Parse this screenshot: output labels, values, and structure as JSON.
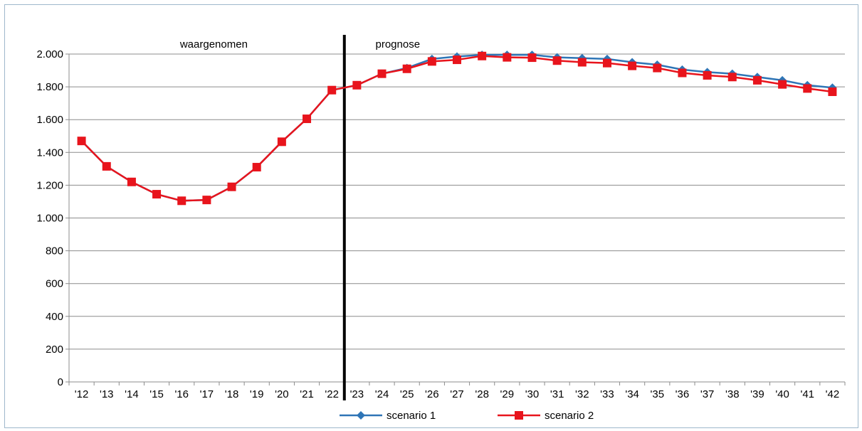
{
  "chart_data": {
    "type": "line",
    "title": "",
    "xlabel": "",
    "ylabel": "",
    "categories": [
      "'12",
      "'13",
      "'14",
      "'15",
      "'16",
      "'17",
      "'18",
      "'19",
      "'20",
      "'21",
      "'22",
      "'23",
      "'24",
      "'25",
      "'26",
      "'27",
      "'28",
      "'29",
      "'30",
      "'31",
      "'32",
      "'33",
      "'34",
      "'35",
      "'36",
      "'37",
      "'38",
      "'39",
      "'40",
      "'41",
      "'42"
    ],
    "ylim": [
      0,
      2000
    ],
    "yticks": [
      0,
      200,
      400,
      600,
      800,
      1000,
      1200,
      1400,
      1600,
      1800,
      2000
    ],
    "ytick_labels": [
      "0",
      "200",
      "400",
      "600",
      "800",
      "1.000",
      "1.200",
      "1.400",
      "1.600",
      "1.800",
      "2.000"
    ],
    "grid": "horizontal",
    "legend_position": "bottom",
    "divider_after_category": "'22",
    "annotations": [
      {
        "text": "waargenomen",
        "region": "left"
      },
      {
        "text": "prognose",
        "region": "right"
      }
    ],
    "series": [
      {
        "name": "scenario 1",
        "color": "#2e75b6",
        "marker": "diamond",
        "values": [
          1470,
          1315,
          1220,
          1145,
          1105,
          1110,
          1190,
          1310,
          1465,
          1605,
          1780,
          1810,
          1880,
          1915,
          1970,
          1985,
          1995,
          1995,
          1995,
          1980,
          1975,
          1970,
          1950,
          1935,
          1905,
          1890,
          1880,
          1860,
          1840,
          1810,
          1795
        ]
      },
      {
        "name": "scenario 2",
        "color": "#e8141c",
        "marker": "square",
        "values": [
          1470,
          1315,
          1220,
          1145,
          1105,
          1110,
          1190,
          1310,
          1465,
          1605,
          1780,
          1810,
          1880,
          1910,
          1955,
          1965,
          1988,
          1980,
          1978,
          1960,
          1950,
          1945,
          1928,
          1915,
          1885,
          1870,
          1860,
          1840,
          1815,
          1790,
          1770
        ]
      }
    ]
  }
}
